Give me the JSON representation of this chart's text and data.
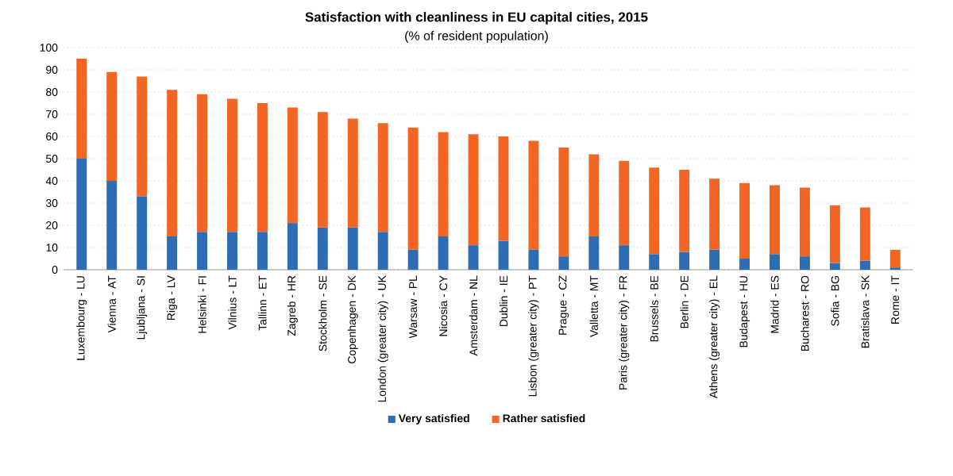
{
  "chart_data": {
    "type": "bar",
    "stacked": true,
    "title": "Satisfaction with cleanliness in EU capital cities, 2015",
    "subtitle": "(% of resident population)",
    "categories": [
      "Luxembourg - LU",
      "Vienna - AT",
      "Ljubljana - SI",
      "Riga - LV",
      "Helsinki - FI",
      "Vilnius - LT",
      "Tallinn - ET",
      "Zagreb - HR",
      "Stockholm - SE",
      "Copenhagen - DK",
      "London (greater city) - UK",
      "Warsaw - PL",
      "Nicosia - CY",
      "Amsterdam - NL",
      "Dublin - IE",
      "Lisbon (greater city) - PT",
      "Prague - CZ",
      "Valletta - MT",
      "Paris (greater city) - FR",
      "Brussels - BE",
      "Berlin - DE",
      "Athens (greater city) - EL",
      "Budapest - HU",
      "Madrid - ES",
      "Bucharest - RO",
      "Sofia - BG",
      "Bratislava - SK",
      "Rome - IT"
    ],
    "series": [
      {
        "name": "Very satisfied",
        "color": "#2e6db4",
        "values": [
          50,
          40,
          33,
          15,
          17,
          17,
          17,
          21,
          19,
          19,
          17,
          9,
          15,
          11,
          13,
          9,
          6,
          15,
          11,
          7,
          8,
          9,
          5,
          7,
          6,
          3,
          4,
          1
        ]
      },
      {
        "name": "Rather satisfied",
        "color": "#f26522",
        "values": [
          45,
          49,
          54,
          66,
          62,
          60,
          58,
          52,
          52,
          49,
          49,
          55,
          47,
          50,
          47,
          49,
          49,
          37,
          38,
          39,
          37,
          32,
          34,
          31,
          31,
          26,
          24,
          8
        ]
      }
    ],
    "ylim": [
      0,
      100
    ],
    "yticks": [
      0,
      10,
      20,
      30,
      40,
      50,
      60,
      70,
      80,
      90,
      100
    ],
    "grid": "y",
    "legend": "bottom"
  }
}
